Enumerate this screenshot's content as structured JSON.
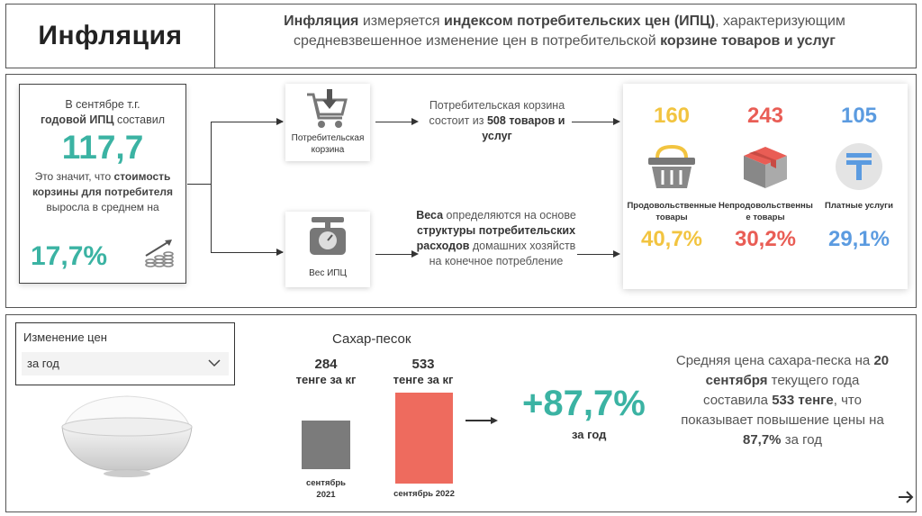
{
  "header": {
    "title": "Инфляция",
    "desc_b1": "Инфляция",
    "desc_t1": " измеряется ",
    "desc_b2": "индексом потребительских цен (ИПЦ)",
    "desc_t2": ", характеризующим",
    "desc_t3": "средневзвешенное изменение цен в потребительской ",
    "desc_b3": "корзине товаров и услуг"
  },
  "cpi_card": {
    "intro_t1": "В сентябре т.г.",
    "intro_b1": "годовой ИПЦ",
    "intro_t2": " составил",
    "value": "117,7",
    "explain_t1": "Это значит, что ",
    "explain_b1": "стоимость корзины для потребителя",
    "explain_t2": " выросла в среднем на",
    "growth": "17,7%",
    "growth_icon": "chart-growth-icon"
  },
  "basket": {
    "card_label": "Потребительская корзина",
    "icon": "cart-icon",
    "text_t1": "Потребительская корзина состоит из ",
    "text_b1": "508 товаров и услуг"
  },
  "weights": {
    "card_label": "Вес ИПЦ",
    "icon": "scale-icon",
    "text_b1": "Веса",
    "text_t1": " определяются на основе ",
    "text_b2": "структуры потребительских расходов",
    "text_t2": " домашних хозяйств на конечное потребление"
  },
  "categories": [
    {
      "count": "160",
      "label": "Продовольственные товары",
      "pct": "40,7%",
      "color": "#f2c440",
      "icon": "basket-icon"
    },
    {
      "count": "243",
      "label": "Непродовольственны е товары",
      "pct": "30,2%",
      "color": "#e95d55",
      "icon": "box-icon"
    },
    {
      "count": "105",
      "label": "Платные услуги",
      "pct": "29,1%",
      "color": "#5b9be0",
      "icon": "tenge-icon"
    }
  ],
  "slicer": {
    "title": "Изменение цен",
    "selected": "за год"
  },
  "product": {
    "title": "Сахар-песок",
    "bars": [
      {
        "value": "284",
        "unit": "тенге за кг",
        "label": "сентябрь 2021",
        "price": 284,
        "color": "#7b7b7b"
      },
      {
        "value": "533",
        "unit": "тенге за кг",
        "label": "сентябрь 2022",
        "price": 533,
        "color": "#ee6b5e"
      }
    ],
    "change": "+87,7%",
    "change_period": "за год"
  },
  "summary": {
    "t1": "Средняя цена сахара-песка на ",
    "b1": "20 сентября",
    "t2": " текущего года составила ",
    "b2": "533 тенге",
    "t3": ", что показывает повышение цены на ",
    "b3": "87,7%",
    "t4": " за год"
  },
  "colors": {
    "accent": "#3bb3a3"
  }
}
